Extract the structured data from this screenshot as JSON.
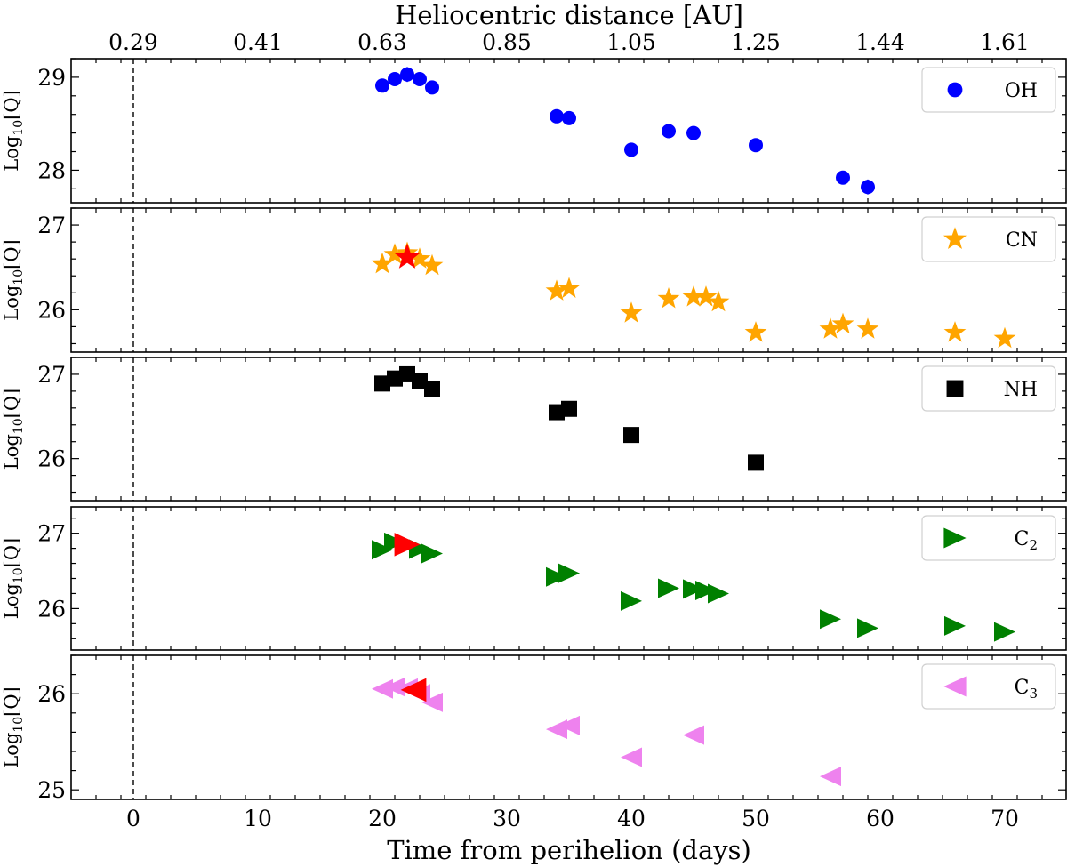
{
  "chart_data": {
    "type": "scatter",
    "top_axis": {
      "label": "Heliocentric distance [AU]",
      "tick_labels": [
        "0.29",
        "0.41",
        "0.63",
        "0.85",
        "1.05",
        "1.25",
        "1.44",
        "1.61"
      ],
      "tick_days": [
        0,
        10,
        20,
        30,
        40,
        50,
        60,
        70
      ]
    },
    "xlabel": "Time from perihelion (days)",
    "xlim": [
      -5,
      75
    ],
    "xticks": [
      0,
      10,
      20,
      30,
      40,
      50,
      60,
      70
    ],
    "perihelion_line_x": 0,
    "ylabel": "Log₁₀[Q]",
    "panels": [
      {
        "species": "OH",
        "legend": "OH",
        "sub": "",
        "marker": "circle",
        "color": "#0000ff",
        "ylim": [
          27.65,
          29.2
        ],
        "yticks": [
          28,
          29
        ],
        "x": [
          20,
          21,
          22,
          23,
          24,
          34,
          35,
          40,
          43,
          45,
          50,
          57,
          59
        ],
        "y": [
          28.91,
          28.98,
          29.03,
          28.98,
          28.89,
          28.58,
          28.56,
          28.22,
          28.42,
          28.4,
          28.27,
          27.92,
          27.82
        ],
        "err": [
          0.06,
          0.05,
          0.08,
          0.05,
          0.05,
          0.04,
          0.04,
          0.05,
          0.07,
          0.05,
          0.05,
          0.05,
          0.08
        ],
        "highlight": []
      },
      {
        "species": "CN",
        "legend": "CN",
        "sub": "",
        "marker": "star",
        "color": "#ffa500",
        "ylim": [
          25.5,
          27.2
        ],
        "yticks": [
          26,
          27
        ],
        "x": [
          20,
          21,
          22,
          23,
          24,
          34,
          35,
          40,
          43,
          45,
          46,
          47,
          50,
          56,
          57,
          59,
          66,
          70
        ],
        "y": [
          26.54,
          26.65,
          26.67,
          26.6,
          26.52,
          26.22,
          26.25,
          25.96,
          26.13,
          26.15,
          26.15,
          26.09,
          25.73,
          25.77,
          25.83,
          25.77,
          25.73,
          25.66
        ],
        "err": [],
        "highlight": [
          {
            "x": 22,
            "y": 26.62,
            "color": "#ff0000"
          }
        ]
      },
      {
        "species": "NH",
        "legend": "NH",
        "sub": "",
        "marker": "square",
        "color": "#000000",
        "ylim": [
          25.5,
          27.2
        ],
        "yticks": [
          26,
          27
        ],
        "x": [
          20,
          21,
          22,
          23,
          24,
          34,
          35,
          40,
          50
        ],
        "y": [
          26.89,
          26.95,
          27.0,
          26.92,
          26.82,
          26.55,
          26.59,
          26.28,
          25.95
        ],
        "err": [],
        "highlight": []
      },
      {
        "species": "C2",
        "legend": "C",
        "sub": "2",
        "marker": "triangle-right",
        "color": "#008000",
        "ylim": [
          25.45,
          27.35
        ],
        "yticks": [
          26,
          27
        ],
        "x": [
          20,
          21,
          22,
          23,
          24,
          34,
          35,
          40,
          43,
          45,
          46,
          47,
          56,
          59,
          66,
          70
        ],
        "y": [
          26.78,
          26.88,
          26.84,
          26.79,
          26.73,
          26.42,
          26.47,
          26.1,
          26.27,
          26.26,
          26.24,
          26.2,
          25.86,
          25.74,
          25.77,
          25.69
        ],
        "err": [],
        "highlight": [
          {
            "x": 22,
            "y": 26.85,
            "color": "#ff0000"
          }
        ]
      },
      {
        "species": "C3",
        "legend": "C",
        "sub": "3",
        "marker": "triangle-left",
        "color": "#ee82ee",
        "ylim": [
          24.9,
          26.4
        ],
        "yticks": [
          25,
          26
        ],
        "x": [
          20,
          21,
          22,
          23,
          24,
          34,
          35,
          40,
          45,
          56
        ],
        "y": [
          26.05,
          26.07,
          26.06,
          26.0,
          25.91,
          25.63,
          25.67,
          25.34,
          25.57,
          25.14
        ],
        "err": [],
        "highlight": [
          {
            "x": 22.5,
            "y": 26.04,
            "color": "#ff0000"
          }
        ]
      }
    ]
  }
}
